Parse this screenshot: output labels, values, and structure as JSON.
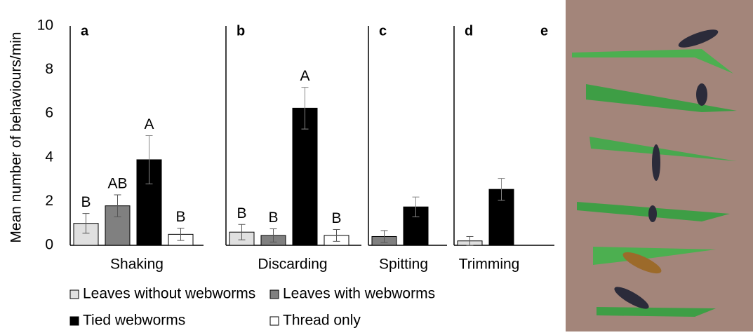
{
  "chart_data": {
    "type": "bar",
    "ylabel": "Mean number of behaviours/min",
    "ylim": [
      0,
      10
    ],
    "yticks": [
      0,
      2,
      4,
      6,
      8,
      10
    ],
    "categories": [
      "Shaking",
      "Discarding",
      "Spitting",
      "Trimming"
    ],
    "panel_labels": [
      "a",
      "b",
      "c",
      "d"
    ],
    "series": [
      {
        "name": "Leaves without webworms",
        "color": "#e0e0e0",
        "values": [
          1.0,
          0.6,
          null,
          0.2
        ],
        "errors": [
          0.45,
          0.35,
          null,
          0.2
        ],
        "letters": [
          "B",
          "B",
          null,
          null
        ]
      },
      {
        "name": "Leaves with webworms",
        "color": "#808080",
        "values": [
          1.8,
          0.45,
          0.4,
          null
        ],
        "errors": [
          0.5,
          0.3,
          0.27,
          null
        ],
        "letters": [
          "AB",
          "B",
          null,
          null
        ]
      },
      {
        "name": "Tied webworms",
        "color": "#000000",
        "values": [
          3.9,
          6.25,
          1.75,
          2.55
        ],
        "errors": [
          1.1,
          0.95,
          0.45,
          0.5
        ],
        "letters": [
          "A",
          "A",
          null,
          null
        ]
      },
      {
        "name": "Thread only",
        "color": "#ffffff",
        "values": [
          0.5,
          0.45,
          null,
          null
        ],
        "errors": [
          0.28,
          0.27,
          null,
          null
        ],
        "letters": [
          "B",
          "B",
          null,
          null
        ]
      }
    ]
  },
  "photo": {
    "label": "e"
  }
}
